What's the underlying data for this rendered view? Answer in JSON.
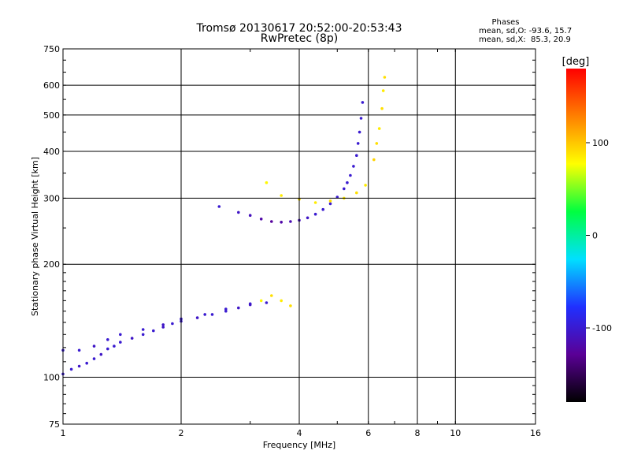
{
  "chart_data": {
    "type": "scatter",
    "title_line1": "Tromsø 20130617 20:52:00-20:53:43",
    "title_line2": "RwPretec (8p)",
    "xlabel": "Frequency [MHz]",
    "ylabel": "Stationary phase Virtual Height [km]",
    "x_scale": "log",
    "y_scale": "log",
    "xlim": [
      1,
      16
    ],
    "ylim": [
      75,
      750
    ],
    "x_ticks": [
      1,
      2,
      4,
      6,
      8,
      10,
      16
    ],
    "y_ticks": [
      75,
      100,
      200,
      300,
      400,
      500,
      600,
      750
    ],
    "grid": true,
    "phases_info": {
      "heading": "Phases",
      "line_o": "mean, sd,O: -93.6, 15.7",
      "line_x": "mean, sd,X:  85.3, 20.9"
    },
    "colorbar": {
      "label": "[deg]",
      "range": [
        -180,
        180
      ],
      "ticks": [
        100,
        0,
        -100
      ],
      "colormap": [
        "#000000",
        "#5a0096",
        "#2030ff",
        "#00e0ff",
        "#00ff40",
        "#ffff00",
        "#ff8000",
        "#ff0000"
      ]
    },
    "series": [
      {
        "trace": [
          [
            1.0,
            102,
            -100
          ],
          [
            1.05,
            105,
            -100
          ],
          [
            1.1,
            107,
            -105
          ],
          [
            1.15,
            109,
            -100
          ],
          [
            1.2,
            112,
            -100
          ],
          [
            1.25,
            115,
            -105
          ],
          [
            1.3,
            119,
            -100
          ],
          [
            1.35,
            121,
            -100
          ],
          [
            1.4,
            124,
            -100
          ],
          [
            1.5,
            127,
            -105
          ],
          [
            1.6,
            130,
            -100
          ],
          [
            1.7,
            133,
            -100
          ],
          [
            1.8,
            136,
            -105
          ],
          [
            1.9,
            139,
            -100
          ],
          [
            2.0,
            141,
            -100
          ],
          [
            2.2,
            144,
            -105
          ],
          [
            2.4,
            147,
            -100
          ],
          [
            2.6,
            150,
            -100
          ],
          [
            2.8,
            153,
            -105
          ],
          [
            3.0,
            157,
            -100
          ],
          [
            1.0,
            118,
            -100
          ],
          [
            1.1,
            118,
            -100
          ],
          [
            1.2,
            121,
            -105
          ],
          [
            1.3,
            126,
            -100
          ],
          [
            1.4,
            130,
            -100
          ],
          [
            1.6,
            134,
            -100
          ],
          [
            1.8,
            138,
            -105
          ],
          [
            2.0,
            143,
            -100
          ],
          [
            2.3,
            147,
            -100
          ],
          [
            2.6,
            152,
            -100
          ],
          [
            3.0,
            156,
            -105
          ],
          [
            3.3,
            158,
            -100
          ]
        ]
      },
      {
        "band": [
          [
            2.5,
            285,
            -100
          ],
          [
            2.8,
            275,
            -105
          ],
          [
            3.0,
            270,
            -110
          ],
          [
            3.2,
            264,
            -120
          ],
          [
            3.4,
            260,
            -125
          ],
          [
            3.6,
            259,
            -120
          ],
          [
            3.8,
            260,
            -115
          ],
          [
            4.0,
            262,
            -110
          ],
          [
            4.2,
            266,
            -105
          ],
          [
            4.4,
            272,
            -100
          ],
          [
            4.6,
            280,
            -100
          ],
          [
            4.8,
            290,
            -100
          ],
          [
            5.0,
            302,
            -100
          ],
          [
            5.2,
            318,
            -100
          ],
          [
            5.3,
            330,
            -100
          ],
          [
            5.4,
            345,
            -100
          ],
          [
            5.5,
            365,
            -100
          ],
          [
            5.6,
            390,
            -100
          ],
          [
            5.65,
            420,
            -100
          ],
          [
            5.7,
            450,
            -100
          ],
          [
            5.75,
            490,
            -100
          ],
          [
            5.8,
            540,
            -100
          ]
        ]
      },
      {
        "x_mode": [
          [
            3.3,
            330,
            80
          ],
          [
            3.6,
            305,
            85
          ],
          [
            4.0,
            298,
            90
          ],
          [
            4.4,
            292,
            85
          ],
          [
            4.8,
            295,
            90
          ],
          [
            5.2,
            300,
            85
          ],
          [
            5.6,
            310,
            90
          ],
          [
            5.9,
            325,
            85
          ],
          [
            6.2,
            380,
            95
          ],
          [
            6.3,
            420,
            90
          ],
          [
            6.4,
            460,
            85
          ],
          [
            6.5,
            520,
            90
          ],
          [
            6.55,
            580,
            85
          ],
          [
            6.6,
            630,
            90
          ],
          [
            3.2,
            160,
            80
          ],
          [
            3.4,
            165,
            90
          ],
          [
            3.6,
            160,
            85
          ],
          [
            3.8,
            155,
            90
          ]
        ]
      }
    ]
  }
}
